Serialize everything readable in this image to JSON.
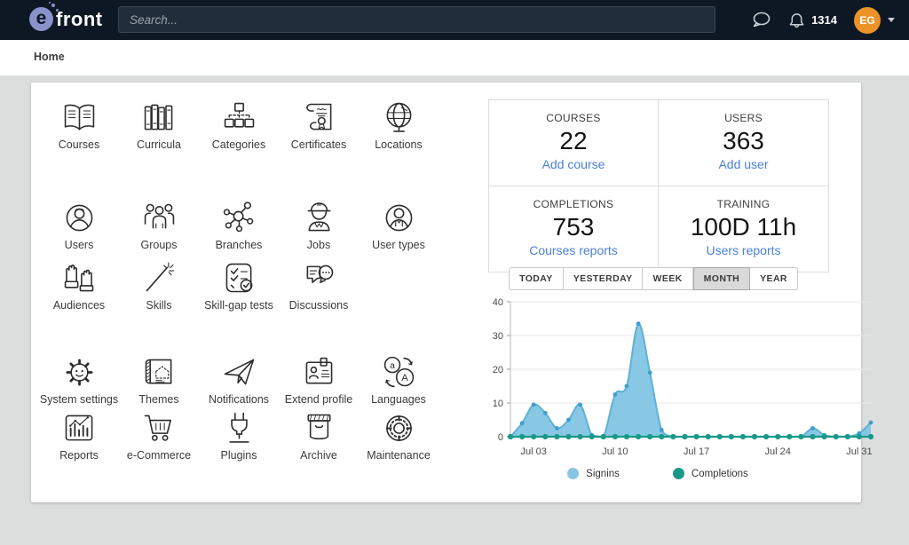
{
  "topbar": {
    "logo_letter": "e",
    "logo_text": "front",
    "search_placeholder": "Search...",
    "notifications_count": "1314",
    "avatar_initials": "EG",
    "accent_colors": {
      "topbar_bg": "#0d1824",
      "logo": "#8a93c9",
      "avatar": "#ec9327"
    }
  },
  "breadcrumb": {
    "items": [
      "Home"
    ]
  },
  "icon_grid": {
    "rows": [
      [
        {
          "label": "Courses",
          "icon": "open-book-icon"
        },
        {
          "label": "Curricula",
          "icon": "books-icon"
        },
        {
          "label": "Categories",
          "icon": "category-tree-icon"
        },
        {
          "label": "Certificates",
          "icon": "certificate-icon"
        },
        {
          "label": "Locations",
          "icon": "globe-icon"
        }
      ],
      [
        {
          "label": "Users",
          "icon": "user-icon"
        },
        {
          "label": "Groups",
          "icon": "group-icon"
        },
        {
          "label": "Branches",
          "icon": "network-icon"
        },
        {
          "label": "Jobs",
          "icon": "worker-icon"
        },
        {
          "label": "User types",
          "icon": "user-badge-icon"
        }
      ],
      [
        {
          "label": "Audiences",
          "icon": "raised-hands-icon"
        },
        {
          "label": "Skills",
          "icon": "magic-wand-icon"
        },
        {
          "label": "Skill-gap tests",
          "icon": "checklist-icon"
        },
        {
          "label": "Discussions",
          "icon": "speech-bubbles-icon"
        }
      ],
      [
        {
          "label": "System settings",
          "icon": "gear-smiley-icon"
        },
        {
          "label": "Themes",
          "icon": "blueprint-icon"
        },
        {
          "label": "Notifications",
          "icon": "paper-plane-icon"
        },
        {
          "label": "Extend profile",
          "icon": "id-card-icon"
        },
        {
          "label": "Languages",
          "icon": "translate-icon"
        }
      ],
      [
        {
          "label": "Reports",
          "icon": "bar-chart-icon"
        },
        {
          "label": "e-Commerce",
          "icon": "shopping-cart-icon"
        },
        {
          "label": "Plugins",
          "icon": "plug-icon"
        },
        {
          "label": "Archive",
          "icon": "archive-box-icon"
        },
        {
          "label": "Maintenance",
          "icon": "wheel-icon"
        }
      ]
    ]
  },
  "stats": {
    "cards": [
      {
        "title": "COURSES",
        "value": "22",
        "link": "Add course"
      },
      {
        "title": "USERS",
        "value": "363",
        "link": "Add user"
      },
      {
        "title": "COMPLETIONS",
        "value": "753",
        "link": "Courses reports"
      },
      {
        "title": "TRAINING",
        "value": "100D 11h",
        "link": "Users reports"
      }
    ],
    "link_color": "#4a80da"
  },
  "range_tabs": {
    "options": [
      "TODAY",
      "YESTERDAY",
      "WEEK",
      "MONTH",
      "YEAR"
    ],
    "active": "MONTH"
  },
  "chart_data": {
    "type": "area",
    "x": [
      "Jul 01",
      "Jul 02",
      "Jul 03",
      "Jul 04",
      "Jul 05",
      "Jul 06",
      "Jul 07",
      "Jul 08",
      "Jul 09",
      "Jul 10",
      "Jul 11",
      "Jul 12",
      "Jul 13",
      "Jul 14",
      "Jul 15",
      "Jul 16",
      "Jul 17",
      "Jul 18",
      "Jul 19",
      "Jul 20",
      "Jul 21",
      "Jul 22",
      "Jul 23",
      "Jul 24",
      "Jul 25",
      "Jul 26",
      "Jul 27",
      "Jul 28",
      "Jul 29",
      "Jul 30",
      "Jul 31",
      "Aug 01"
    ],
    "x_tick_labels": [
      "Jul 03",
      "Jul 10",
      "Jul 17",
      "Jul 24",
      "Jul 31"
    ],
    "x_tick_indices": [
      2,
      9,
      16,
      23,
      30
    ],
    "ylim": [
      0,
      40
    ],
    "yticks": [
      0,
      10,
      20,
      30,
      40
    ],
    "grid": true,
    "legend_position": "bottom",
    "series": [
      {
        "name": "Signins",
        "color": "#7fc3e3",
        "line_color": "#5fb1d6",
        "dot_color": "#3e9ecd",
        "values": [
          0,
          4,
          9.5,
          7,
          2.5,
          5,
          9.5,
          0.5,
          0,
          12.5,
          15,
          33.5,
          19,
          2,
          0,
          0,
          0,
          0,
          0,
          0,
          0,
          0,
          0,
          0,
          0,
          0,
          2.5,
          0.5,
          0,
          0,
          1,
          4.2
        ]
      },
      {
        "name": "Completions",
        "color": "#199a89",
        "line_color": "#199a89",
        "dot_color": "#199a89",
        "values": [
          0,
          0,
          0,
          0,
          0,
          0,
          0,
          0,
          0,
          0,
          0,
          0,
          0,
          0,
          0,
          0,
          0,
          0,
          0,
          0,
          0,
          0,
          0,
          0,
          0,
          0,
          0,
          0,
          0,
          0,
          0,
          0
        ]
      }
    ]
  }
}
